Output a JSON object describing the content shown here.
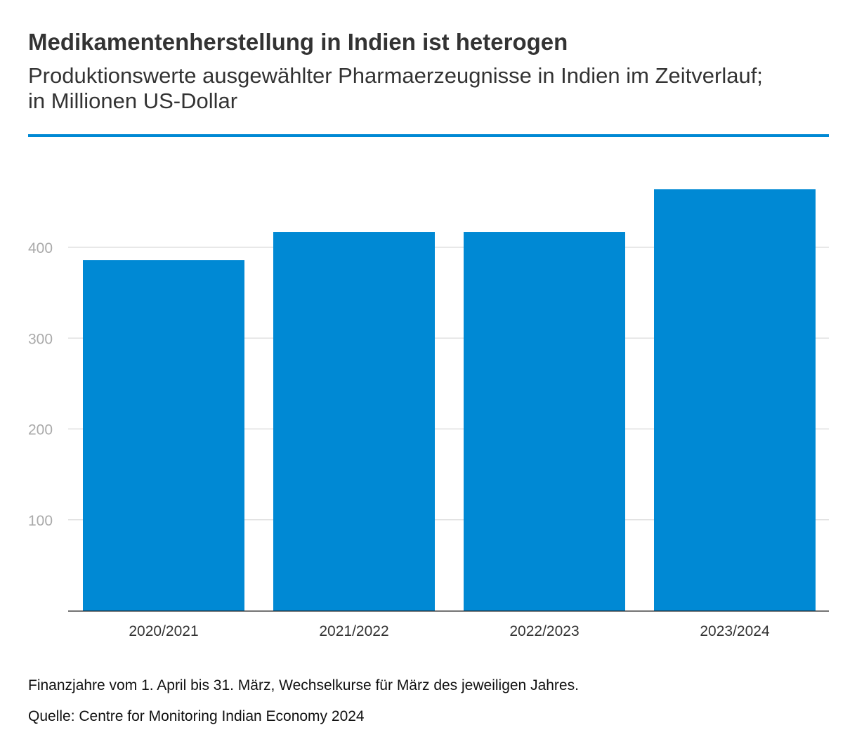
{
  "header": {
    "title": "Medikamentenherstellung in Indien ist heterogen",
    "subtitle": "Produktionswerte ausgewählter Pharmaerzeugnisse in Indien im Zeitverlauf; in Millionen US-Dollar"
  },
  "chart_data": {
    "type": "bar",
    "categories": [
      "2020/2021",
      "2021/2022",
      "2022/2023",
      "2023/2024"
    ],
    "values": [
      386,
      417,
      417,
      464
    ],
    "yticks": [
      100,
      200,
      300,
      400
    ],
    "ylim": [
      0,
      480
    ],
    "grid": true,
    "bar_color": "#0089d4",
    "grid_color": "#e0e0e0",
    "tick_label_color": "#aaaaaa"
  },
  "footer": {
    "note": "Finanzjahre vom 1. April bis 31. März, Wechselkurse für März des jeweiligen Jahres.",
    "source": "Quelle: Centre for Monitoring Indian Economy 2024"
  }
}
